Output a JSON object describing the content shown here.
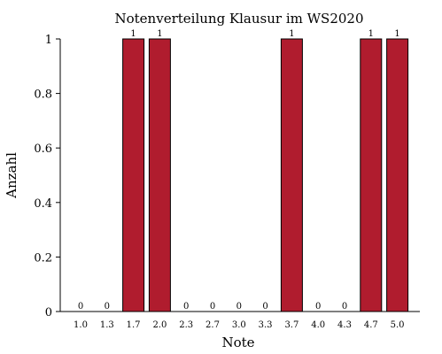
{
  "chart_data": {
    "type": "bar",
    "title": "Notenverteilung Klausur im WS2020",
    "xlabel": "Note",
    "ylabel": "Anzahl",
    "categories": [
      "1.0",
      "1.3",
      "1.7",
      "2.0",
      "2.3",
      "2.7",
      "3.0",
      "3.3",
      "3.7",
      "4.0",
      "4.3",
      "4.7",
      "5.0"
    ],
    "values": [
      0,
      0,
      1,
      1,
      0,
      0,
      0,
      0,
      1,
      0,
      0,
      1,
      1
    ],
    "value_labels": [
      "0",
      "0",
      "1",
      "1",
      "0",
      "0",
      "0",
      "0",
      "1",
      "0",
      "0",
      "1",
      "1"
    ],
    "ylim": [
      0,
      1
    ],
    "yticks": [
      0,
      0.2,
      0.4,
      0.6,
      0.8,
      1
    ],
    "ytick_labels": [
      "0",
      "0.2",
      "0.4",
      "0.6",
      "0.8",
      "1"
    ],
    "grid": false,
    "legend": "none",
    "bar_color": "#b01c2e",
    "bar_edge_color": "#000000"
  }
}
